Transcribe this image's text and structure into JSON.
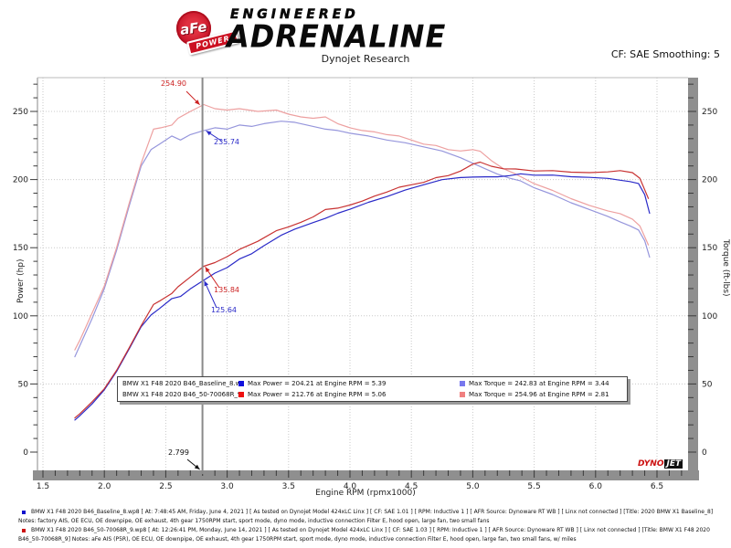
{
  "header": {
    "engineered": "ENGINEERED",
    "adrenaline": "ADRENALINE",
    "afe": "aFe",
    "power": "POWER",
    "subtitle": "Dynojet Research",
    "cf_label": "CF: SAE Smoothing: 5"
  },
  "chart_data": {
    "type": "line",
    "xlabel": "Engine RPM (rpmx1000)",
    "ylabel_left": "Power (hp)",
    "ylabel_right": "Torque (ft-lbs)",
    "x_ticks": [
      "1.5",
      "2.0",
      "2.5",
      "3.0",
      "3.5",
      "4.0",
      "4.5",
      "5.0",
      "5.5",
      "6.0",
      "6.5"
    ],
    "y_ticks": [
      0,
      50,
      100,
      150,
      200,
      250
    ],
    "x_range": [
      1.45,
      6.8
    ],
    "y_range": [
      0,
      275
    ],
    "grid": "dotted",
    "cursor_rpm": 2.799,
    "series": [
      {
        "name": "BMW X1 F48 2020 B46_Baseline_8.wp8",
        "power_color": "#2a2ac8",
        "torque_color": "#9696dc",
        "swatch_power": "#1111dd",
        "swatch_torque": "#7878ee",
        "max_power": {
          "value": 204.21,
          "rpm": 5.39
        },
        "max_torque": {
          "value": 242.83,
          "rpm": 3.44
        },
        "cursor_power": 125.64,
        "cursor_torque": 235.74,
        "torque_points": [
          [
            1.76,
            70
          ],
          [
            1.8,
            78
          ],
          [
            1.9,
            98
          ],
          [
            2.0,
            120
          ],
          [
            2.1,
            148
          ],
          [
            2.2,
            180
          ],
          [
            2.3,
            210
          ],
          [
            2.38,
            222
          ],
          [
            2.45,
            226
          ],
          [
            2.55,
            232
          ],
          [
            2.62,
            229
          ],
          [
            2.7,
            233
          ],
          [
            2.8,
            235.7
          ],
          [
            2.9,
            238
          ],
          [
            3.0,
            237
          ],
          [
            3.1,
            240
          ],
          [
            3.2,
            239
          ],
          [
            3.3,
            241
          ],
          [
            3.44,
            242.8
          ],
          [
            3.55,
            242
          ],
          [
            3.7,
            239
          ],
          [
            3.8,
            237
          ],
          [
            3.9,
            236
          ],
          [
            4.0,
            234
          ],
          [
            4.15,
            232
          ],
          [
            4.3,
            229
          ],
          [
            4.45,
            227
          ],
          [
            4.6,
            224
          ],
          [
            4.75,
            221
          ],
          [
            4.9,
            216
          ],
          [
            5.0,
            212
          ],
          [
            5.1,
            208
          ],
          [
            5.2,
            204
          ],
          [
            5.3,
            201
          ],
          [
            5.39,
            199
          ],
          [
            5.5,
            194
          ],
          [
            5.65,
            189
          ],
          [
            5.8,
            183
          ],
          [
            5.95,
            178
          ],
          [
            6.1,
            173
          ],
          [
            6.2,
            169
          ],
          [
            6.28,
            166
          ],
          [
            6.35,
            163
          ],
          [
            6.4,
            155
          ],
          [
            6.44,
            143
          ]
        ],
        "power_points": [
          [
            1.76,
            23.5
          ],
          [
            1.8,
            26.7
          ],
          [
            1.9,
            35.4
          ],
          [
            2.0,
            45.7
          ],
          [
            2.1,
            59.2
          ],
          [
            2.2,
            75.4
          ],
          [
            2.3,
            92.0
          ],
          [
            2.38,
            100.6
          ],
          [
            2.45,
            105.4
          ],
          [
            2.55,
            112.7
          ],
          [
            2.62,
            114.2
          ],
          [
            2.7,
            119.8
          ],
          [
            2.8,
            125.6
          ],
          [
            2.9,
            131.4
          ],
          [
            3.0,
            135.4
          ],
          [
            3.1,
            141.7
          ],
          [
            3.2,
            145.6
          ],
          [
            3.3,
            151.5
          ],
          [
            3.44,
            159.1
          ],
          [
            3.55,
            163.6
          ],
          [
            3.7,
            168.4
          ],
          [
            3.8,
            171.5
          ],
          [
            3.9,
            175.3
          ],
          [
            4.0,
            178.2
          ],
          [
            4.15,
            183.3
          ],
          [
            4.3,
            187.5
          ],
          [
            4.45,
            192.3
          ],
          [
            4.6,
            196.2
          ],
          [
            4.75,
            199.9
          ],
          [
            4.9,
            201.5
          ],
          [
            5.0,
            201.8
          ],
          [
            5.1,
            202.0
          ],
          [
            5.2,
            202.0
          ],
          [
            5.3,
            202.9
          ],
          [
            5.39,
            204.2
          ],
          [
            5.5,
            203.2
          ],
          [
            5.65,
            203.3
          ],
          [
            5.8,
            202.1
          ],
          [
            5.95,
            201.6
          ],
          [
            6.1,
            200.9
          ],
          [
            6.2,
            199.5
          ],
          [
            6.28,
            198.5
          ],
          [
            6.35,
            197.1
          ],
          [
            6.4,
            188.9
          ],
          [
            6.44,
            175.3
          ]
        ]
      },
      {
        "name": "BMW X1 F48 2020 B46_50-70068R_9.wp8",
        "power_color": "#c83232",
        "torque_color": "#eda0a0",
        "swatch_power": "#ee1111",
        "swatch_torque": "#f08080",
        "max_power": {
          "value": 212.76,
          "rpm": 5.06
        },
        "max_torque": {
          "value": 254.96,
          "rpm": 2.81
        },
        "cursor_power": 135.84,
        "cursor_torque": 254.9,
        "torque_points": [
          [
            1.76,
            75
          ],
          [
            1.8,
            82
          ],
          [
            1.9,
            102
          ],
          [
            2.0,
            122
          ],
          [
            2.1,
            150
          ],
          [
            2.2,
            182
          ],
          [
            2.3,
            212
          ],
          [
            2.4,
            237
          ],
          [
            2.46,
            238
          ],
          [
            2.55,
            240
          ],
          [
            2.6,
            245
          ],
          [
            2.7,
            250
          ],
          [
            2.81,
            255
          ],
          [
            2.9,
            252
          ],
          [
            3.0,
            251
          ],
          [
            3.1,
            252
          ],
          [
            3.25,
            250
          ],
          [
            3.4,
            251
          ],
          [
            3.5,
            248
          ],
          [
            3.6,
            246
          ],
          [
            3.7,
            245
          ],
          [
            3.8,
            246
          ],
          [
            3.9,
            241
          ],
          [
            4.0,
            238
          ],
          [
            4.1,
            236
          ],
          [
            4.2,
            235
          ],
          [
            4.3,
            233
          ],
          [
            4.4,
            232
          ],
          [
            4.5,
            229
          ],
          [
            4.6,
            226
          ],
          [
            4.7,
            225
          ],
          [
            4.8,
            222
          ],
          [
            4.9,
            221
          ],
          [
            5.0,
            222
          ],
          [
            5.06,
            220.8
          ],
          [
            5.15,
            214
          ],
          [
            5.25,
            208
          ],
          [
            5.35,
            204
          ],
          [
            5.5,
            197
          ],
          [
            5.65,
            192
          ],
          [
            5.8,
            186
          ],
          [
            5.95,
            181
          ],
          [
            6.1,
            177
          ],
          [
            6.2,
            175
          ],
          [
            6.3,
            171
          ],
          [
            6.36,
            166
          ],
          [
            6.43,
            152
          ]
        ],
        "power_points": [
          [
            1.76,
            25.1
          ],
          [
            1.8,
            28.1
          ],
          [
            1.9,
            36.9
          ],
          [
            2.0,
            46.5
          ],
          [
            2.1,
            60.0
          ],
          [
            2.2,
            76.2
          ],
          [
            2.3,
            92.8
          ],
          [
            2.4,
            108.3
          ],
          [
            2.46,
            111.4
          ],
          [
            2.55,
            116.5
          ],
          [
            2.6,
            121.3
          ],
          [
            2.7,
            128.5
          ],
          [
            2.81,
            136.4
          ],
          [
            2.9,
            139.1
          ],
          [
            3.0,
            143.4
          ],
          [
            3.1,
            148.7
          ],
          [
            3.25,
            154.7
          ],
          [
            3.4,
            162.5
          ],
          [
            3.5,
            165.3
          ],
          [
            3.6,
            168.6
          ],
          [
            3.7,
            172.6
          ],
          [
            3.8,
            178.0
          ],
          [
            3.9,
            179.0
          ],
          [
            4.0,
            181.3
          ],
          [
            4.1,
            184.2
          ],
          [
            4.2,
            187.9
          ],
          [
            4.3,
            190.8
          ],
          [
            4.4,
            194.4
          ],
          [
            4.5,
            196.2
          ],
          [
            4.6,
            197.9
          ],
          [
            4.7,
            201.4
          ],
          [
            4.8,
            202.9
          ],
          [
            4.9,
            206.2
          ],
          [
            5.0,
            211.3
          ],
          [
            5.06,
            212.8
          ],
          [
            5.15,
            209.8
          ],
          [
            5.25,
            207.9
          ],
          [
            5.35,
            207.8
          ],
          [
            5.5,
            206.3
          ],
          [
            5.65,
            206.6
          ],
          [
            5.8,
            205.4
          ],
          [
            5.95,
            205.1
          ],
          [
            6.1,
            205.6
          ],
          [
            6.2,
            206.6
          ],
          [
            6.3,
            205.1
          ],
          [
            6.36,
            201.0
          ],
          [
            6.43,
            186.1
          ]
        ]
      }
    ],
    "annotations": [
      {
        "label": "254.90",
        "color": "#cc2222",
        "kind": "torque",
        "rpm": 2.799,
        "value": 254.9
      },
      {
        "label": "235.74",
        "color": "#2a2ac8",
        "kind": "torque",
        "rpm": 2.799,
        "value": 235.74
      },
      {
        "label": "135.84",
        "color": "#cc2222",
        "kind": "power",
        "rpm": 2.799,
        "value": 135.84
      },
      {
        "label": "125.64",
        "color": "#2a2ac8",
        "kind": "power",
        "rpm": 2.799,
        "value": 125.64
      },
      {
        "label": "2.799",
        "color": "#111111",
        "kind": "cursor",
        "rpm": 2.799,
        "value": 0
      }
    ]
  },
  "legend": {
    "rows": [
      {
        "name": "BMW X1 F48 2020 B46_Baseline_8.wp8",
        "power_label": "Max Power = 204.21 at Engine RPM = 5.39",
        "torque_label": "Max Torque = 242.83 at Engine RPM = 3.44"
      },
      {
        "name": "BMW X1 F48 2020 B46_50-70068R_9.wp8",
        "power_label": "Max Power = 212.76 at Engine RPM = 5.06",
        "torque_label": "Max Torque = 254.96 at Engine RPM = 2.81"
      }
    ]
  },
  "watermark": {
    "dyno": "DYNO",
    "jet": "JET"
  },
  "footer": {
    "entries": [
      {
        "marker_color": "#1111cc",
        "text": "BMW X1 F48 2020 B46_Baseline_8.wp8 [ At: 7:48:45 AM, Friday, June 4, 2021 ] [ As tested on Dynojet Model 424xLC Linx ] [ CF: SAE 1.01 ] [ RPM: Inductive 1 ] [ AFR Source: Dynoware RT WB ] [ Linx not connected ] [Title: 2020 BMW X1 Baseline_8]  Notes: factory AIS, OE ECU, OE downpipe, OE exhaust, 4th gear 1750RPM start, sport mode, dyno mode, inductive connection Filter E, hood open, large fan, two small fans"
      },
      {
        "marker_color": "#cc1111",
        "text": "BMW X1 F48 2020 B46_50-70068R_9.wp8 [ At: 12:26:41 PM, Monday, June 14, 2021 ] [ As tested on Dynojet Model 424xLC Linx ] [ CF: SAE 1.03 ] [ RPM: Inductive 1 ] [ AFR Source: Dynoware RT WB ] [ Linx not connected ] [Title: BMW X1 F48 2020 B46_50-70068R_9]  Notes: aFe AIS (P5R), OE ECU, OE downpipe, OE exhaust, 4th gear 1750RPM start, sport mode, dyno mode, inductive connection Filter E, hood open, large fan, two small fans, w/ miles"
      }
    ]
  }
}
